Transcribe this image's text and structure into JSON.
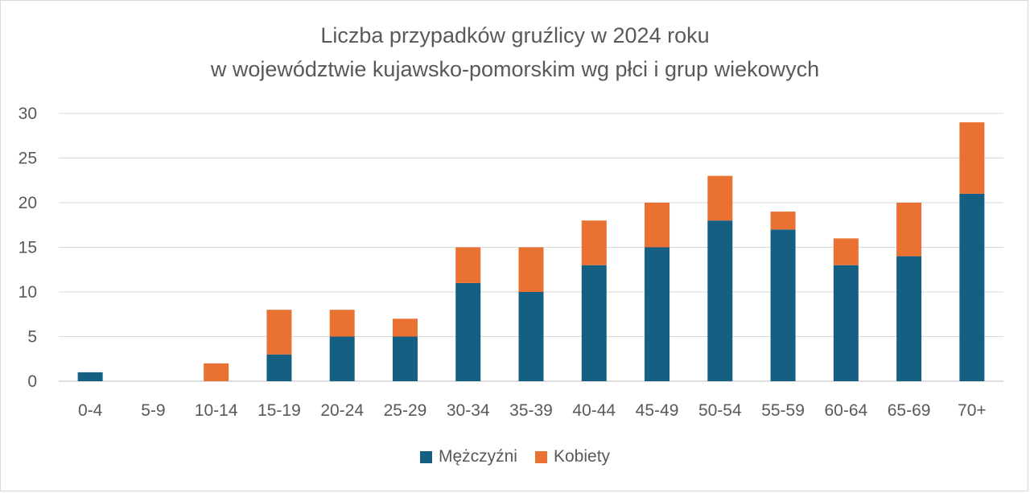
{
  "chart_data": {
    "type": "bar",
    "stacked": true,
    "title_line1": "Liczba przypadków gruźlicy w 2024 roku",
    "title_line2": "w województwie kujawsko-pomorskim wg płci i grup wiekowych",
    "categories": [
      "0-4",
      "5-9",
      "10-14",
      "15-19",
      "20-24",
      "25-29",
      "30-34",
      "35-39",
      "40-44",
      "45-49",
      "50-54",
      "55-59",
      "60-64",
      "65-69",
      "70+"
    ],
    "series": [
      {
        "name": "Mężczyźni",
        "color": "#156082",
        "values": [
          1,
          0,
          0,
          3,
          5,
          5,
          11,
          10,
          13,
          15,
          18,
          17,
          13,
          14,
          21
        ]
      },
      {
        "name": "Kobiety",
        "color": "#e97132",
        "values": [
          0,
          0,
          2,
          5,
          3,
          2,
          4,
          5,
          5,
          5,
          5,
          2,
          3,
          6,
          8
        ]
      }
    ],
    "ylim": [
      0,
      30
    ],
    "yticks": [
      0,
      5,
      10,
      15,
      20,
      25,
      30
    ],
    "grid": true,
    "legend_position": "bottom"
  }
}
